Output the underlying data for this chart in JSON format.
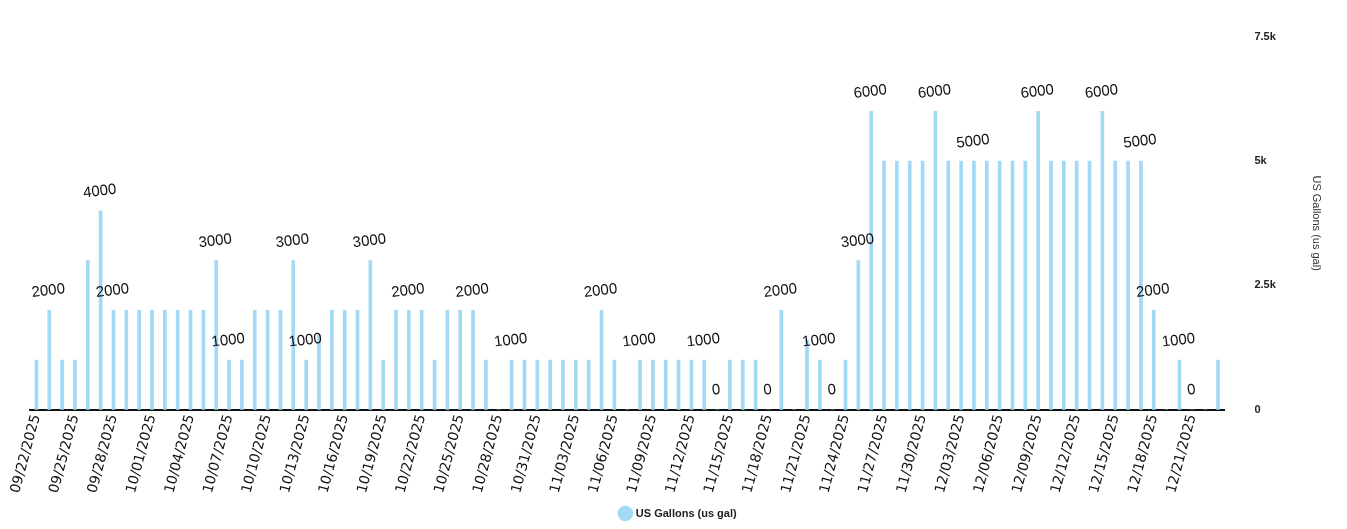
{
  "chart_data": {
    "type": "bar",
    "ylabel": "US Gallons (us gal)",
    "categories": [
      "09/22/2025",
      null,
      null,
      "09/25/2025",
      null,
      null,
      "09/28/2025",
      null,
      null,
      "10/01/2025",
      null,
      null,
      "10/04/2025",
      null,
      null,
      "10/07/2025",
      null,
      null,
      "10/10/2025",
      null,
      null,
      "10/13/2025",
      null,
      null,
      "10/16/2025",
      null,
      null,
      "10/19/2025",
      null,
      null,
      "10/22/2025",
      null,
      null,
      "10/25/2025",
      null,
      null,
      "10/28/2025",
      null,
      null,
      "10/31/2025",
      null,
      null,
      "11/03/2025",
      null,
      null,
      "11/06/2025",
      null,
      null,
      "11/09/2025",
      null,
      null,
      "11/12/2025",
      null,
      null,
      "11/15/2025",
      null,
      null,
      "11/18/2025",
      null,
      null,
      "11/21/2025",
      null,
      null,
      "11/24/2025",
      null,
      null,
      "11/27/2025",
      null,
      null,
      "11/30/2025",
      null,
      null,
      "12/03/2025",
      null,
      null,
      "12/06/2025",
      null,
      null,
      "12/09/2025",
      null,
      null,
      "12/12/2025",
      null,
      null,
      "12/15/2025",
      null,
      null,
      "12/18/2025",
      null,
      null,
      "12/21/2025",
      null,
      null
    ],
    "series": [
      {
        "name": "US Gallons (us gal)",
        "color": "#a3d9f5",
        "values": [
          1000,
          2000,
          1000,
          1000,
          3000,
          4000,
          2000,
          2000,
          2000,
          2000,
          2000,
          2000,
          2000,
          2000,
          3000,
          1000,
          1000,
          2000,
          2000,
          2000,
          3000,
          1000,
          1500,
          2000,
          2000,
          2000,
          3000,
          1000,
          2000,
          2000,
          2000,
          1000,
          2000,
          2000,
          2000,
          1000,
          0,
          1000,
          1000,
          1000,
          1000,
          1000,
          1000,
          1000,
          2000,
          1000,
          0,
          1000,
          1000,
          1000,
          1000,
          1000,
          1000,
          0,
          1000,
          1000,
          1000,
          0,
          2000,
          0,
          1400,
          1000,
          0,
          1000,
          3000,
          6000,
          5000,
          5000,
          5000,
          5000,
          6000,
          5000,
          5000,
          5000,
          5000,
          5000,
          5000,
          5000,
          6000,
          5000,
          5000,
          5000,
          5000,
          6000,
          5000,
          5000,
          5000,
          2000,
          0,
          1000,
          0,
          0,
          1000
        ],
        "value_labels": [
          null,
          "2000",
          null,
          null,
          null,
          "4000",
          "2000",
          null,
          null,
          null,
          null,
          null,
          null,
          null,
          "3000",
          "1000",
          null,
          null,
          null,
          null,
          "3000",
          "1000",
          null,
          null,
          null,
          null,
          "3000",
          null,
          null,
          "2000",
          null,
          null,
          null,
          null,
          "2000",
          null,
          null,
          "1000",
          null,
          null,
          null,
          null,
          null,
          null,
          "2000",
          null,
          null,
          "1000",
          null,
          null,
          null,
          null,
          "1000",
          "0",
          null,
          null,
          null,
          "0",
          "2000",
          null,
          null,
          "1000",
          "0",
          null,
          "3000",
          "6000",
          null,
          null,
          null,
          null,
          "6000",
          null,
          null,
          "5000",
          null,
          null,
          null,
          null,
          "6000",
          null,
          null,
          null,
          null,
          "6000",
          null,
          null,
          "5000",
          "2000",
          null,
          "1000",
          "0",
          null,
          null
        ]
      }
    ],
    "ylim": [
      0,
      7500
    ],
    "yticks": [
      0,
      {
        "value": 2500,
        "label": "2.5k"
      },
      {
        "value": 5000,
        "label": "5k"
      },
      {
        "value": 7500,
        "label": "7.5k"
      }
    ],
    "grid": false,
    "legend": "bottom"
  }
}
